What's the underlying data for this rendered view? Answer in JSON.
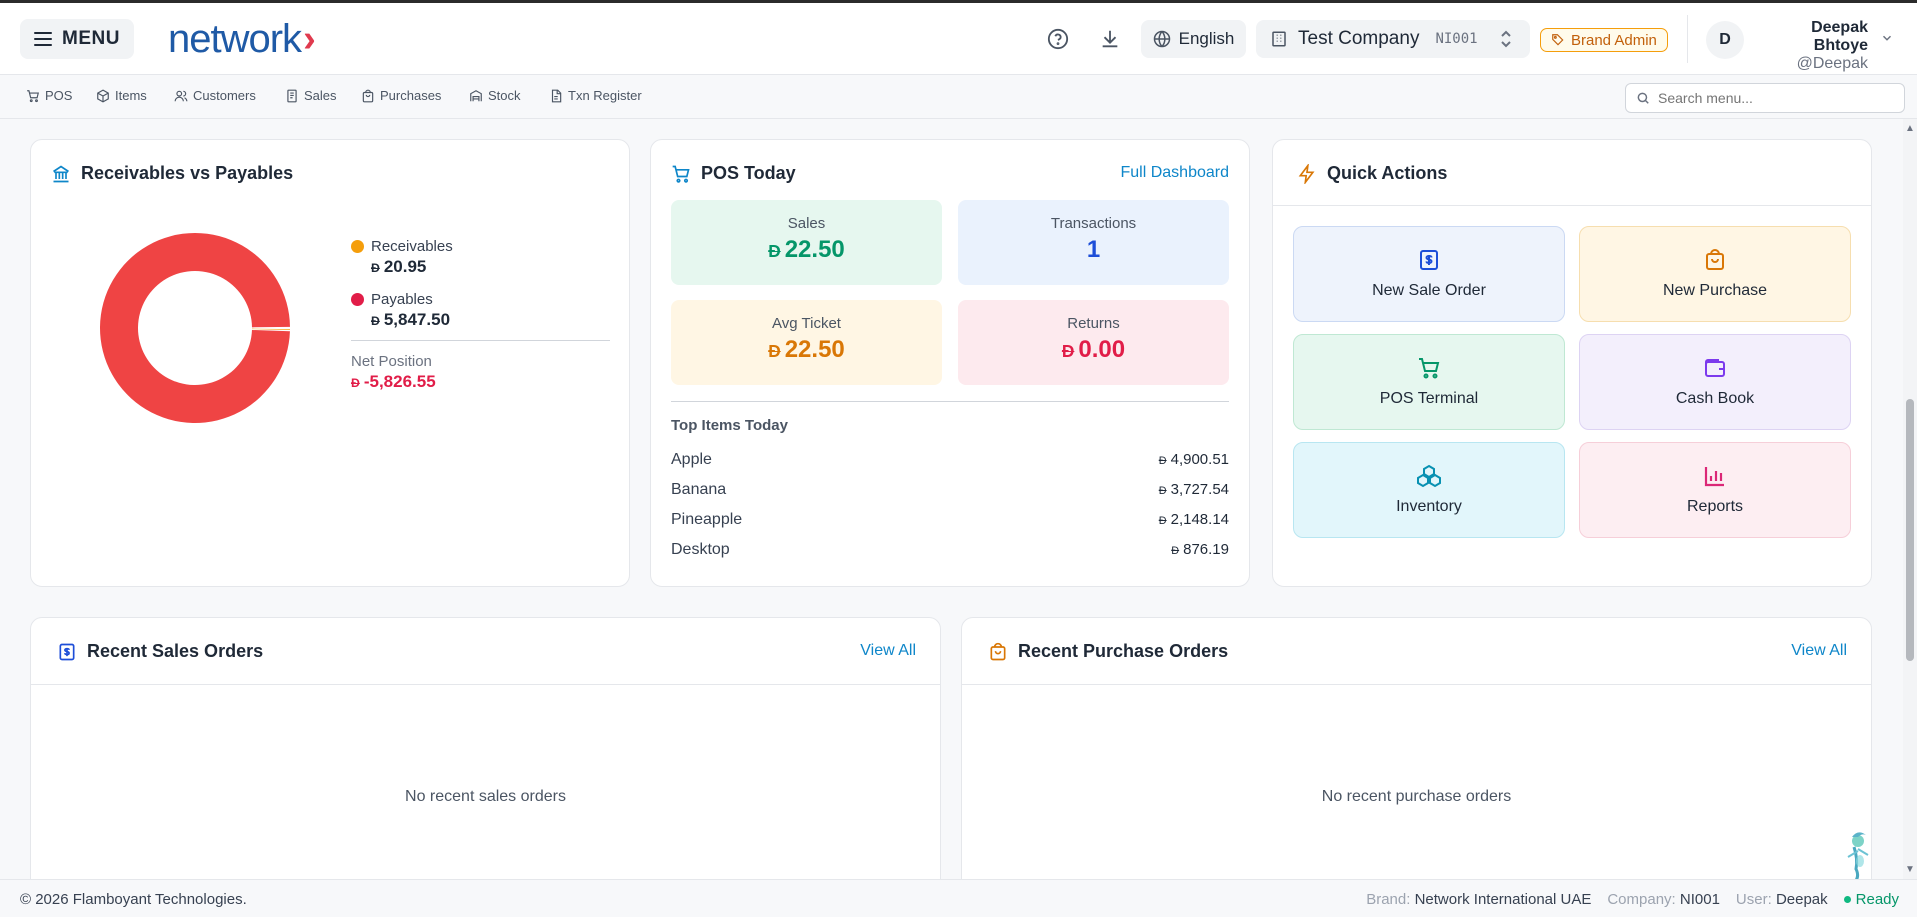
{
  "header": {
    "menu_label": "MENU",
    "logo_text": "network",
    "logo_mark": "›",
    "language": "English",
    "company_name": "Test Company",
    "company_code": "NI001",
    "role_badge": "Brand Admin",
    "avatar_initial": "D",
    "user_name": "Deepak Bhtoye",
    "user_handle": "@Deepak"
  },
  "nav": {
    "items": [
      {
        "label": "POS",
        "icon": "cart-icon"
      },
      {
        "label": "Items",
        "icon": "box-icon"
      },
      {
        "label": "Customers",
        "icon": "users-icon"
      },
      {
        "label": "Sales",
        "icon": "receipt-icon"
      },
      {
        "label": "Purchases",
        "icon": "bag-icon"
      },
      {
        "label": "Stock",
        "icon": "warehouse-icon"
      },
      {
        "label": "Txn Register",
        "icon": "document-icon"
      }
    ],
    "search_placeholder": "Search menu..."
  },
  "receivables": {
    "title": "Receivables vs Payables",
    "receivables_label": "Receivables",
    "receivables_value": "20.95",
    "payables_label": "Payables",
    "payables_value": "5,847.50",
    "net_label": "Net Position",
    "net_value": "-5,826.55",
    "currency_symbol": "Đ",
    "colors": {
      "receivables": "#f59e0b",
      "payables": "#e11d48",
      "donut": "#ef4444"
    },
    "donut_values": {
      "receivables": 20.95,
      "payables": 5847.5
    }
  },
  "pos_today": {
    "title": "POS Today",
    "link": "Full Dashboard",
    "stats": {
      "sales_label": "Sales",
      "sales_value": "22.50",
      "transactions_label": "Transactions",
      "transactions_value": "1",
      "avg_label": "Avg Ticket",
      "avg_value": "22.50",
      "returns_label": "Returns",
      "returns_value": "0.00"
    },
    "top_items_title": "Top Items Today",
    "top_items": [
      {
        "name": "Apple",
        "amount": "4,900.51"
      },
      {
        "name": "Banana",
        "amount": "3,727.54"
      },
      {
        "name": "Pineapple",
        "amount": "2,148.14"
      },
      {
        "name": "Desktop",
        "amount": "876.19"
      }
    ]
  },
  "quick_actions": {
    "title": "Quick Actions",
    "tiles": [
      {
        "label": "New Sale Order",
        "icon": "receipt-icon"
      },
      {
        "label": "New Purchase",
        "icon": "shopping-bag-icon"
      },
      {
        "label": "POS Terminal",
        "icon": "cart-icon"
      },
      {
        "label": "Cash Book",
        "icon": "wallet-icon"
      },
      {
        "label": "Inventory",
        "icon": "boxes-icon"
      },
      {
        "label": "Reports",
        "icon": "bar-chart-icon"
      }
    ]
  },
  "recent_sales": {
    "title": "Recent Sales Orders",
    "link": "View All",
    "empty": "No recent sales orders"
  },
  "recent_purchases": {
    "title": "Recent Purchase Orders",
    "link": "View All",
    "empty": "No recent purchase orders"
  },
  "footer": {
    "copyright": "© 2026 Flamboyant Technologies.",
    "brand_key": "Brand:",
    "brand_value": "Network International UAE",
    "company_key": "Company:",
    "company_value": "NI001",
    "user_key": "User:",
    "user_value": "Deepak",
    "status": "Ready"
  }
}
